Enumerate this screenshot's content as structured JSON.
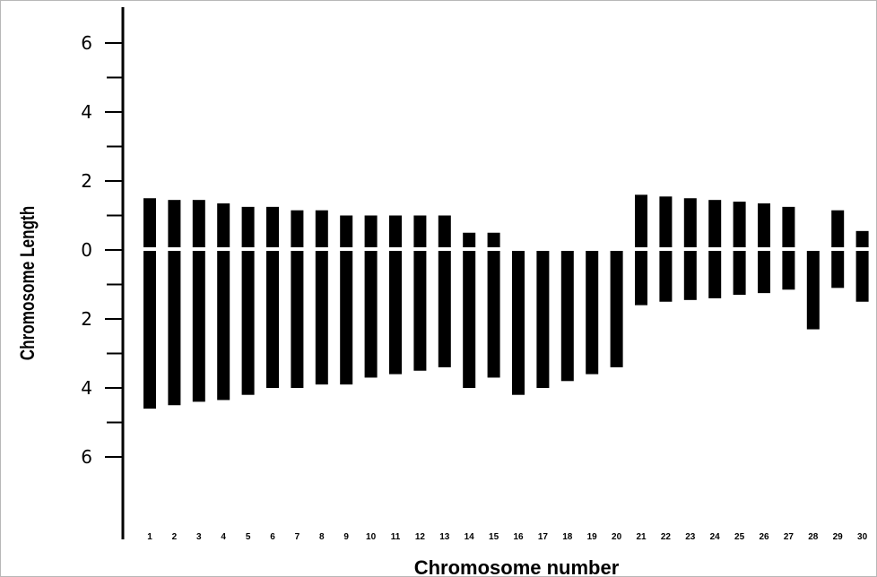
{
  "chart_data": {
    "type": "bar",
    "xlabel": "Chromosome number",
    "ylabel": "Chromosome Length",
    "ylim_top": [
      0,
      7
    ],
    "ylim_bottom": [
      0,
      8
    ],
    "ytick_labels_top": [
      "0",
      "2",
      "4",
      "6"
    ],
    "ytick_values_top": [
      0,
      2,
      4,
      6
    ],
    "ytick_labels_bottom": [
      "2",
      "4",
      "6"
    ],
    "ytick_values_bottom": [
      2,
      4,
      6
    ],
    "minor_tick_step": 1,
    "grid": false,
    "categories": [
      "1",
      "2",
      "3",
      "4",
      "5",
      "6",
      "7",
      "8",
      "9",
      "10",
      "11",
      "12",
      "13",
      "14",
      "15",
      "16",
      "17",
      "18",
      "19",
      "20",
      "21",
      "22",
      "23",
      "24",
      "25",
      "26",
      "27",
      "28",
      "29",
      "30"
    ],
    "series": [
      {
        "values_top": [
          1.5,
          1.45,
          1.45,
          1.35,
          1.25,
          1.25,
          1.15,
          1.15,
          1.0,
          1.0,
          1.0,
          1.0,
          1.0,
          0.5,
          0.5,
          0.0,
          0.0,
          0.0,
          0.0,
          0.0,
          1.6,
          1.55,
          1.5,
          1.45,
          1.4,
          1.35,
          1.25,
          0.0,
          1.15,
          0.55
        ],
        "values_bottom": [
          4.6,
          4.5,
          4.4,
          4.35,
          4.2,
          4.0,
          4.0,
          3.9,
          3.9,
          3.7,
          3.6,
          3.5,
          3.4,
          4.0,
          3.7,
          4.2,
          4.0,
          3.8,
          3.6,
          3.4,
          1.6,
          1.5,
          1.45,
          1.4,
          1.3,
          1.25,
          1.15,
          2.3,
          1.1,
          1.5
        ]
      }
    ],
    "bar_color": "#000000"
  }
}
